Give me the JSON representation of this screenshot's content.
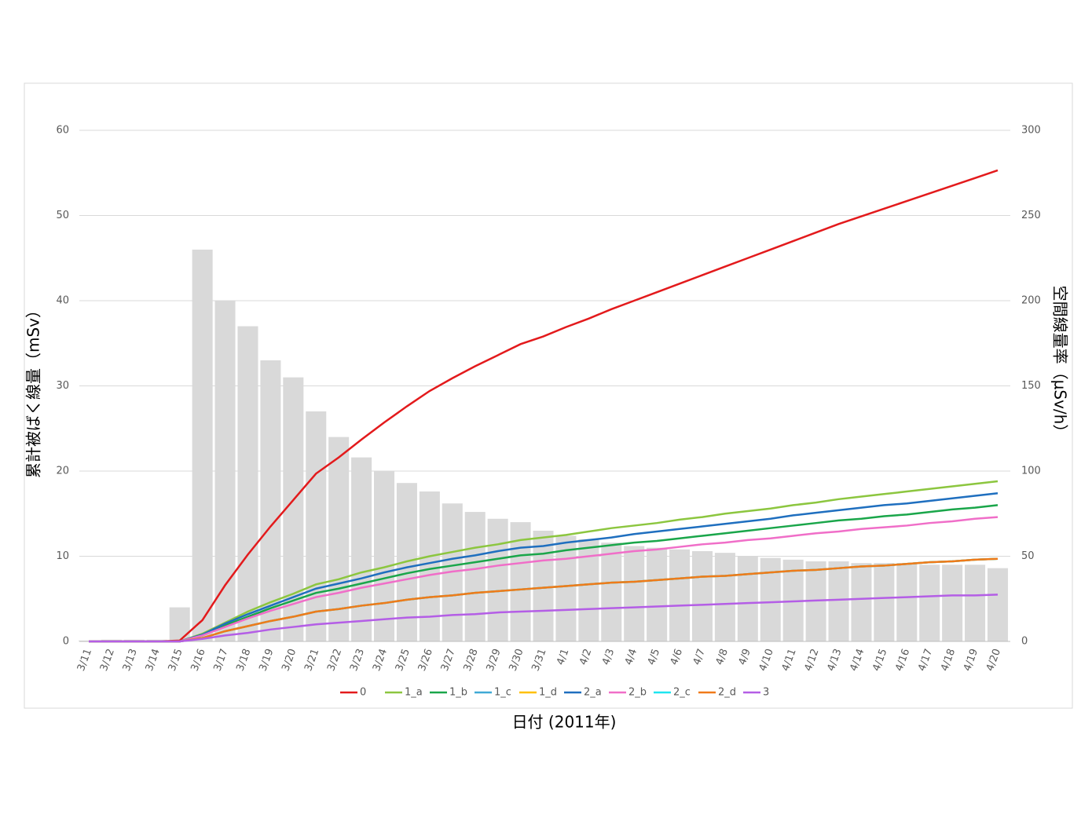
{
  "chart_data": {
    "type": "line",
    "x_label": "日付 (2011年)",
    "y_label": "累計被ばく線量（mSv）",
    "y2_label": "空間線量率（µSv/h）",
    "categories": [
      "3/11",
      "3/12",
      "3/13",
      "3/14",
      "3/15",
      "3/16",
      "3/17",
      "3/18",
      "3/19",
      "3/20",
      "3/21",
      "3/22",
      "3/23",
      "3/24",
      "3/25",
      "3/26",
      "3/27",
      "3/28",
      "3/29",
      "3/30",
      "3/31",
      "4/1",
      "4/2",
      "4/3",
      "4/4",
      "4/5",
      "4/6",
      "4/7",
      "4/8",
      "4/9",
      "4/10",
      "4/11",
      "4/12",
      "4/13",
      "4/14",
      "4/15",
      "4/16",
      "4/17",
      "4/18",
      "4/19",
      "4/20"
    ],
    "ylim": [
      0,
      60
    ],
    "yticks": [
      0,
      10,
      20,
      30,
      40,
      50,
      60
    ],
    "y2lim": [
      0,
      300
    ],
    "y2ticks": [
      0,
      50,
      100,
      150,
      200,
      250,
      300
    ],
    "grid": true,
    "legend": "bottom",
    "bars": {
      "type": "bar",
      "axis": "y2",
      "color": "#d9d9d9",
      "values": [
        0.5,
        1,
        1,
        1,
        20,
        230,
        200,
        185,
        165,
        155,
        135,
        120,
        108,
        100,
        93,
        88,
        81,
        76,
        72,
        70,
        65,
        62,
        60,
        58,
        56,
        55,
        54,
        53,
        52,
        50,
        49,
        48,
        47,
        47,
        46,
        46,
        46,
        45,
        45,
        45,
        43
      ]
    },
    "series": [
      {
        "name": "0",
        "color": "#e31a1c",
        "values": [
          0,
          0,
          0,
          0,
          0.1,
          2.5,
          6.6,
          10.2,
          13.5,
          16.6,
          19.7,
          21.6,
          23.7,
          25.7,
          27.6,
          29.4,
          30.9,
          32.3,
          33.6,
          34.9,
          35.8,
          36.9,
          37.9,
          39.0,
          40.0,
          41.0,
          42.0,
          43.0,
          44.0,
          45.0,
          46.0,
          47.0,
          48.0,
          49.0,
          49.9,
          50.8,
          51.7,
          52.6,
          53.5,
          54.4,
          55.3
        ]
      },
      {
        "name": "1_a",
        "color": "#8cc63f",
        "values": [
          0,
          0,
          0,
          0,
          0,
          0.9,
          2.2,
          3.5,
          4.6,
          5.6,
          6.7,
          7.3,
          8.1,
          8.7,
          9.4,
          10.0,
          10.5,
          11.0,
          11.4,
          11.9,
          12.2,
          12.5,
          12.9,
          13.3,
          13.6,
          13.9,
          14.3,
          14.6,
          15.0,
          15.3,
          15.6,
          16.0,
          16.3,
          16.7,
          17.0,
          17.3,
          17.6,
          17.9,
          18.2,
          18.5,
          18.8
        ]
      },
      {
        "name": "1_b",
        "color": "#1aa64a",
        "values": [
          0,
          0,
          0,
          0,
          0,
          0.7,
          1.9,
          2.9,
          3.9,
          4.8,
          5.7,
          6.2,
          6.8,
          7.4,
          8.0,
          8.5,
          8.9,
          9.3,
          9.7,
          10.1,
          10.3,
          10.7,
          11.0,
          11.3,
          11.6,
          11.8,
          12.1,
          12.4,
          12.7,
          13.0,
          13.3,
          13.6,
          13.9,
          14.2,
          14.4,
          14.7,
          14.9,
          15.2,
          15.5,
          15.7,
          16.0
        ]
      },
      {
        "name": "1_c",
        "color": "#3fa9d6",
        "values": [
          0,
          0,
          0,
          0,
          0,
          0.4,
          1.2,
          1.8,
          2.4,
          2.9,
          3.5,
          3.8,
          4.2,
          4.5,
          4.9,
          5.2,
          5.4,
          5.7,
          5.9,
          6.1,
          6.3,
          6.5,
          6.7,
          6.9,
          7.0,
          7.2,
          7.4,
          7.6,
          7.7,
          7.9,
          8.1,
          8.3,
          8.4,
          8.6,
          8.8,
          8.9,
          9.1,
          9.3,
          9.4,
          9.6,
          9.7
        ]
      },
      {
        "name": "1_d",
        "color": "#ffc000",
        "values": [
          0,
          0,
          0,
          0,
          0,
          0.4,
          1.2,
          1.8,
          2.4,
          2.9,
          3.5,
          3.8,
          4.2,
          4.5,
          4.9,
          5.2,
          5.4,
          5.7,
          5.9,
          6.1,
          6.3,
          6.5,
          6.7,
          6.9,
          7.0,
          7.2,
          7.4,
          7.6,
          7.7,
          7.9,
          8.1,
          8.3,
          8.4,
          8.6,
          8.8,
          8.9,
          9.1,
          9.3,
          9.4,
          9.6,
          9.7
        ]
      },
      {
        "name": "2_a",
        "color": "#1f6fbf",
        "values": [
          0,
          0,
          0,
          0,
          0,
          0.8,
          2.1,
          3.2,
          4.2,
          5.2,
          6.2,
          6.8,
          7.4,
          8.1,
          8.7,
          9.2,
          9.7,
          10.1,
          10.6,
          11.0,
          11.2,
          11.6,
          11.9,
          12.2,
          12.6,
          12.9,
          13.2,
          13.5,
          13.8,
          14.1,
          14.4,
          14.8,
          15.1,
          15.4,
          15.7,
          16.0,
          16.2,
          16.5,
          16.8,
          17.1,
          17.4
        ]
      },
      {
        "name": "2_b",
        "color": "#f06ec8",
        "values": [
          0,
          0,
          0,
          0,
          0,
          0.7,
          1.7,
          2.7,
          3.6,
          4.4,
          5.2,
          5.7,
          6.3,
          6.8,
          7.3,
          7.8,
          8.2,
          8.5,
          8.9,
          9.2,
          9.5,
          9.7,
          10.0,
          10.3,
          10.6,
          10.8,
          11.1,
          11.4,
          11.6,
          11.9,
          12.1,
          12.4,
          12.7,
          12.9,
          13.2,
          13.4,
          13.6,
          13.9,
          14.1,
          14.4,
          14.6
        ]
      },
      {
        "name": "2_c",
        "color": "#1ee6f0",
        "values": [
          0,
          0,
          0,
          0,
          0,
          0.4,
          1.2,
          1.8,
          2.4,
          2.9,
          3.5,
          3.8,
          4.2,
          4.5,
          4.9,
          5.2,
          5.4,
          5.7,
          5.9,
          6.1,
          6.3,
          6.5,
          6.7,
          6.9,
          7.0,
          7.2,
          7.4,
          7.6,
          7.7,
          7.9,
          8.1,
          8.3,
          8.4,
          8.6,
          8.8,
          8.9,
          9.1,
          9.3,
          9.4,
          9.6,
          9.7
        ]
      },
      {
        "name": "2_d",
        "color": "#f07a1a",
        "values": [
          0,
          0,
          0,
          0,
          0,
          0.4,
          1.2,
          1.8,
          2.4,
          2.9,
          3.5,
          3.8,
          4.2,
          4.5,
          4.9,
          5.2,
          5.4,
          5.7,
          5.9,
          6.1,
          6.3,
          6.5,
          6.7,
          6.9,
          7.0,
          7.2,
          7.4,
          7.6,
          7.7,
          7.9,
          8.1,
          8.3,
          8.4,
          8.6,
          8.8,
          8.9,
          9.1,
          9.3,
          9.4,
          9.6,
          9.7
        ]
      },
      {
        "name": "3",
        "color": "#b45ee6",
        "values": [
          0,
          0,
          0,
          0,
          0,
          0.3,
          0.7,
          1.0,
          1.4,
          1.7,
          2.0,
          2.2,
          2.4,
          2.6,
          2.8,
          2.9,
          3.1,
          3.2,
          3.4,
          3.5,
          3.6,
          3.7,
          3.8,
          3.9,
          4.0,
          4.1,
          4.2,
          4.3,
          4.4,
          4.5,
          4.6,
          4.7,
          4.8,
          4.9,
          5.0,
          5.1,
          5.2,
          5.3,
          5.4,
          5.4,
          5.5
        ]
      }
    ]
  }
}
